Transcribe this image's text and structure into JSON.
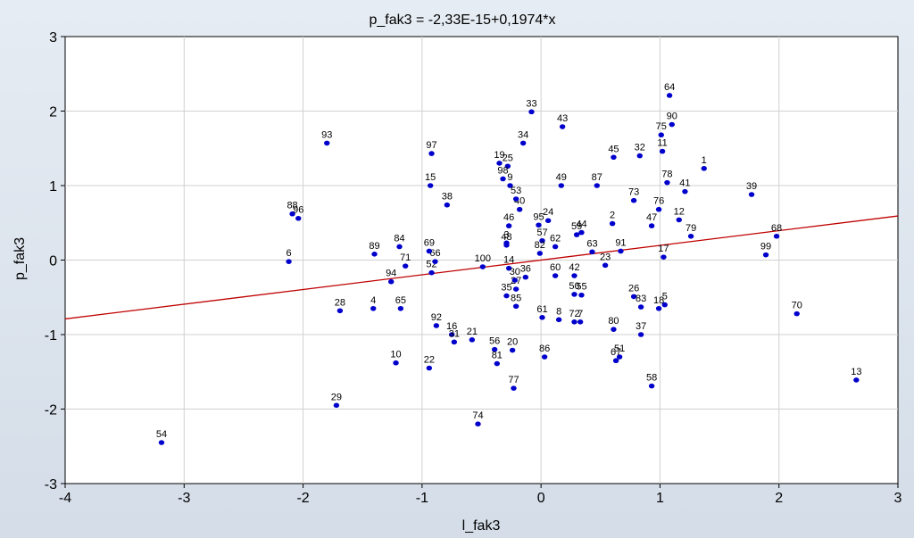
{
  "chart_data": {
    "type": "scatter",
    "title": "p_fak3 = -2,33E-15+0,1974*x",
    "xlabel": "l_fak3",
    "ylabel": "p_fak3",
    "xlim": [
      -4,
      3
    ],
    "ylim": [
      -3,
      3
    ],
    "x_ticks": [
      "-4",
      "-3",
      "-2",
      "-1",
      "0",
      "1",
      "2",
      "3"
    ],
    "y_ticks": [
      "-3",
      "-2",
      "-1",
      "0",
      "1",
      "2",
      "3"
    ],
    "grid": true,
    "regression_line": {
      "intercept": 0,
      "slope": 0.1974
    },
    "point_color": "#0000cc",
    "line_color": "#c00000",
    "points": [
      {
        "label": "1",
        "x": 1.37,
        "y": 1.23
      },
      {
        "label": "2",
        "x": 0.6,
        "y": 0.49
      },
      {
        "label": "3",
        "x": -0.29,
        "y": 0.23
      },
      {
        "label": "4",
        "x": -1.41,
        "y": -0.65
      },
      {
        "label": "5",
        "x": 1.04,
        "y": -0.6
      },
      {
        "label": "6",
        "x": -2.12,
        "y": -0.02
      },
      {
        "label": "7",
        "x": 0.33,
        "y": -0.83
      },
      {
        "label": "8",
        "x": 0.15,
        "y": -0.8
      },
      {
        "label": "9",
        "x": -0.26,
        "y": 1.0
      },
      {
        "label": "10",
        "x": -1.22,
        "y": -1.38
      },
      {
        "label": "11",
        "x": 1.02,
        "y": 1.46
      },
      {
        "label": "12",
        "x": 1.16,
        "y": 0.54
      },
      {
        "label": "13",
        "x": 2.65,
        "y": -1.61
      },
      {
        "label": "14",
        "x": -0.27,
        "y": -0.11
      },
      {
        "label": "15",
        "x": -0.93,
        "y": 1.0
      },
      {
        "label": "16",
        "x": -0.75,
        "y": -1.0
      },
      {
        "label": "17",
        "x": 1.03,
        "y": 0.04
      },
      {
        "label": "18",
        "x": 0.99,
        "y": -0.65
      },
      {
        "label": "19",
        "x": -0.35,
        "y": 1.3
      },
      {
        "label": "20",
        "x": -0.24,
        "y": -1.21
      },
      {
        "label": "21",
        "x": -0.58,
        "y": -1.07
      },
      {
        "label": "22",
        "x": -0.94,
        "y": -1.45
      },
      {
        "label": "23",
        "x": 0.54,
        "y": -0.07
      },
      {
        "label": "24",
        "x": 0.06,
        "y": 0.53
      },
      {
        "label": "25",
        "x": -0.28,
        "y": 1.26
      },
      {
        "label": "26",
        "x": 0.78,
        "y": -0.49
      },
      {
        "label": "27",
        "x": -0.21,
        "y": -0.39
      },
      {
        "label": "28",
        "x": -1.69,
        "y": -0.68
      },
      {
        "label": "29",
        "x": -1.72,
        "y": -1.95
      },
      {
        "label": "30",
        "x": -0.22,
        "y": -0.27
      },
      {
        "label": "31",
        "x": -0.73,
        "y": -1.1
      },
      {
        "label": "32",
        "x": 0.83,
        "y": 1.4
      },
      {
        "label": "33",
        "x": -0.08,
        "y": 1.99
      },
      {
        "label": "34",
        "x": -0.15,
        "y": 1.57
      },
      {
        "label": "35",
        "x": -0.29,
        "y": -0.48
      },
      {
        "label": "36",
        "x": -0.13,
        "y": -0.23
      },
      {
        "label": "37",
        "x": 0.84,
        "y": -1.0
      },
      {
        "label": "38",
        "x": -0.79,
        "y": 0.74
      },
      {
        "label": "39",
        "x": 1.77,
        "y": 0.88
      },
      {
        "label": "40",
        "x": -0.18,
        "y": 0.68
      },
      {
        "label": "41",
        "x": 1.21,
        "y": 0.92
      },
      {
        "label": "42",
        "x": 0.28,
        "y": -0.21
      },
      {
        "label": "43",
        "x": 0.18,
        "y": 1.79
      },
      {
        "label": "44",
        "x": 0.34,
        "y": 0.37
      },
      {
        "label": "45",
        "x": 0.61,
        "y": 1.38
      },
      {
        "label": "46",
        "x": -0.27,
        "y": 0.46
      },
      {
        "label": "47",
        "x": 0.93,
        "y": 0.46
      },
      {
        "label": "48",
        "x": -0.29,
        "y": 0.2
      },
      {
        "label": "49",
        "x": 0.17,
        "y": 1.0
      },
      {
        "label": "50",
        "x": 0.28,
        "y": -0.46
      },
      {
        "label": "51",
        "x": 0.66,
        "y": -1.3
      },
      {
        "label": "52",
        "x": -0.92,
        "y": -0.17
      },
      {
        "label": "53",
        "x": -0.21,
        "y": 0.82
      },
      {
        "label": "54",
        "x": -3.19,
        "y": -2.45
      },
      {
        "label": "55",
        "x": 0.34,
        "y": -0.47
      },
      {
        "label": "56",
        "x": -0.39,
        "y": -1.2
      },
      {
        "label": "57",
        "x": 0.01,
        "y": 0.26
      },
      {
        "label": "58",
        "x": 0.93,
        "y": -1.69
      },
      {
        "label": "59",
        "x": 0.3,
        "y": 0.34
      },
      {
        "label": "60",
        "x": 0.12,
        "y": -0.21
      },
      {
        "label": "61",
        "x": 0.01,
        "y": -0.77
      },
      {
        "label": "62",
        "x": 0.12,
        "y": 0.18
      },
      {
        "label": "63",
        "x": 0.43,
        "y": 0.11
      },
      {
        "label": "64",
        "x": 1.08,
        "y": 2.21
      },
      {
        "label": "65",
        "x": -1.18,
        "y": -0.65
      },
      {
        "label": "66",
        "x": -0.89,
        "y": -0.02
      },
      {
        "label": "67",
        "x": 0.63,
        "y": -1.35
      },
      {
        "label": "68",
        "x": 1.98,
        "y": 0.32
      },
      {
        "label": "69",
        "x": -0.94,
        "y": 0.12
      },
      {
        "label": "70",
        "x": 2.15,
        "y": -0.72
      },
      {
        "label": "71",
        "x": -1.14,
        "y": -0.08
      },
      {
        "label": "72",
        "x": 0.28,
        "y": -0.83
      },
      {
        "label": "73",
        "x": 0.78,
        "y": 0.8
      },
      {
        "label": "74",
        "x": -0.53,
        "y": -2.2
      },
      {
        "label": "75",
        "x": 1.01,
        "y": 1.68
      },
      {
        "label": "76",
        "x": 0.99,
        "y": 0.68
      },
      {
        "label": "77",
        "x": -0.23,
        "y": -1.72
      },
      {
        "label": "78",
        "x": 1.06,
        "y": 1.04
      },
      {
        "label": "79",
        "x": 1.26,
        "y": 0.32
      },
      {
        "label": "80",
        "x": 0.61,
        "y": -0.93
      },
      {
        "label": "81",
        "x": -0.37,
        "y": -1.39
      },
      {
        "label": "82",
        "x": -0.01,
        "y": 0.09
      },
      {
        "label": "83",
        "x": 0.84,
        "y": -0.63
      },
      {
        "label": "84",
        "x": -1.19,
        "y": 0.18
      },
      {
        "label": "85",
        "x": -0.21,
        "y": -0.62
      },
      {
        "label": "86",
        "x": 0.03,
        "y": -1.3
      },
      {
        "label": "87",
        "x": 0.47,
        "y": 1.0
      },
      {
        "label": "88",
        "x": -2.09,
        "y": 0.62
      },
      {
        "label": "89",
        "x": -1.4,
        "y": 0.08
      },
      {
        "label": "90",
        "x": 1.1,
        "y": 1.82
      },
      {
        "label": "91",
        "x": 0.67,
        "y": 0.12
      },
      {
        "label": "92",
        "x": -0.88,
        "y": -0.88
      },
      {
        "label": "93",
        "x": -1.8,
        "y": 1.57
      },
      {
        "label": "94",
        "x": -1.26,
        "y": -0.29
      },
      {
        "label": "95",
        "x": -0.02,
        "y": 0.47
      },
      {
        "label": "96",
        "x": -2.04,
        "y": 0.56
      },
      {
        "label": "97",
        "x": -0.92,
        "y": 1.43
      },
      {
        "label": "98",
        "x": -0.32,
        "y": 1.09
      },
      {
        "label": "99",
        "x": 1.89,
        "y": 0.07
      },
      {
        "label": "100",
        "x": -0.49,
        "y": -0.09
      }
    ]
  }
}
